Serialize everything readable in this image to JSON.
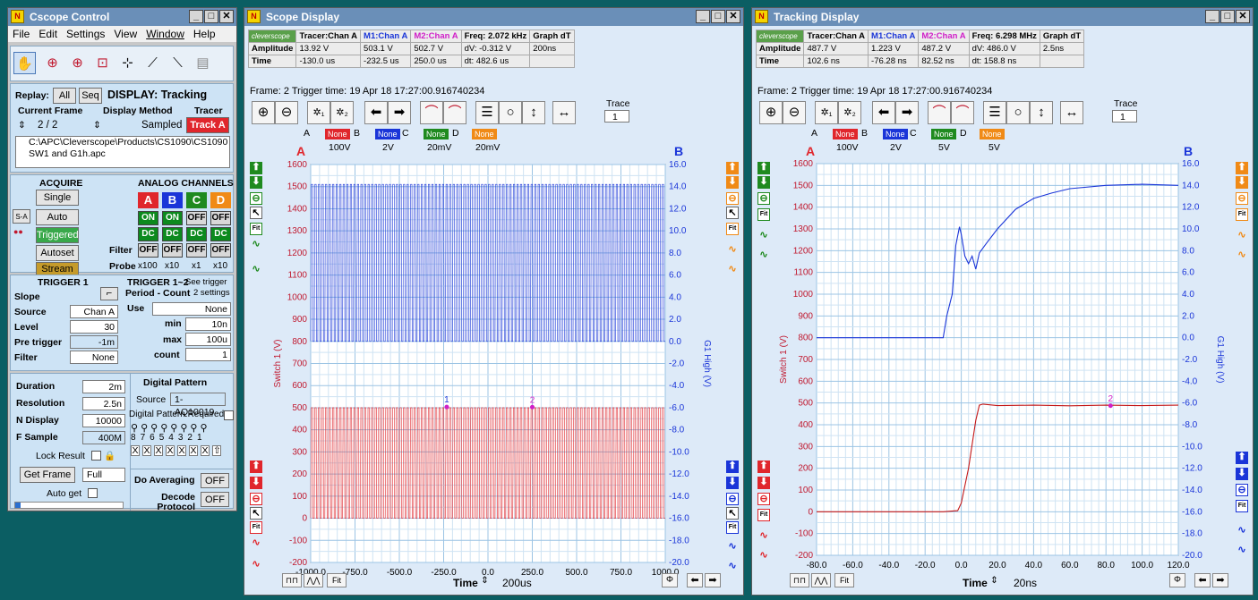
{
  "control": {
    "title": "Cscope Control",
    "menu": [
      "File",
      "Edit",
      "Settings",
      "View",
      "Window",
      "Help"
    ],
    "replay_label": "Replay:",
    "replay_all": "All",
    "replay_seq": "Seq",
    "display_label": "DISPLAY: Tracking",
    "current_frame_label": "Current Frame",
    "display_method_label": "Display Method",
    "tracer_label": "Tracer",
    "frame_value": "2 / 2",
    "display_method_value": "Sampled",
    "track_button": "Track A",
    "file_path": "C:\\APC\\Cleverscope\\Products\\CS1090\\CS1090 SW1 and G1h.apc",
    "acquire_label": "ACQUIRE",
    "analog_label": "ANALOG CHANNELS",
    "single": "Single",
    "auto": "Auto",
    "triggered": "Triggered",
    "autoset": "Autoset",
    "stream": "Stream",
    "sa_label": "S-A",
    "channels": [
      "A",
      "B",
      "C",
      "D"
    ],
    "channel_colors": [
      "#e0262c",
      "#1a35d8",
      "#1f8a1f",
      "#f08a16"
    ],
    "on_row": [
      "ON",
      "ON",
      "OFF",
      "OFF"
    ],
    "dc_row": [
      "DC",
      "DC",
      "DC",
      "DC"
    ],
    "filter_label": "Filter",
    "filter_row": [
      "OFF",
      "OFF",
      "OFF",
      "OFF"
    ],
    "probe_label": "Probe",
    "probe_row": [
      "x100",
      "x10",
      "x1",
      "x10"
    ],
    "trigger1_label": "TRIGGER 1",
    "trigger12_label": "TRIGGER 1~2",
    "see_trigger": "See trigger",
    "period_count": "Period - Count",
    "two_settings": "2 settings",
    "slope_label": "Slope",
    "source_label": "Source",
    "source_value": "Chan A",
    "level_label": "Level",
    "level_value": "30",
    "pretrigger_label": "Pre trigger",
    "pretrigger_value": "-1m",
    "filter2_label": "Filter",
    "filter2_value": "None",
    "use_label": "Use",
    "use_value": "None",
    "min_label": "min",
    "min_value": "10n",
    "max_label": "max",
    "max_value": "100u",
    "count_label": "count",
    "count_value": "1",
    "duration_label": "Duration",
    "duration_value": "2m",
    "resolution_label": "Resolution",
    "resolution_value": "2.5n",
    "ndisplay_label": "N Display",
    "ndisplay_value": "10000",
    "fsample_label": "F Sample",
    "fsample_value": "400M",
    "lock_label": "Lock Result",
    "get_frame": "Get Frame",
    "full": "Full",
    "auto_get": "Auto get",
    "digital_label": "Digital Pattern",
    "digital_source_label": "Source",
    "digital_source_value": "1-AQ10019",
    "digital_required": "Digital Pattern Required",
    "bit_numbers": [
      "8",
      "7",
      "6",
      "5",
      "4",
      "3",
      "2",
      "1"
    ],
    "bit_states": [
      "X",
      "X",
      "X",
      "X",
      "X",
      "X",
      "X",
      "⇧"
    ],
    "averaging_label": "Do Averaging",
    "averaging_value": "OFF",
    "decode_label": "Decode Protocol",
    "decode_value": "OFF"
  },
  "scope": {
    "title": "Scope Display",
    "info_header": [
      "Tracer:Chan A",
      "M1:Chan A",
      "M2:Chan A",
      "Freq: 2.072 kHz",
      "Graph dT"
    ],
    "info_row1": [
      "Amplitude",
      "13.92 V",
      "503.1 V",
      "502.7 V",
      "dV: -0.312 V",
      "200ns"
    ],
    "info_row2": [
      "Time",
      "-130.0 us",
      "-232.5 us",
      "250.0 us",
      "dt:  482.6 us",
      ""
    ],
    "logo": "cleverscope",
    "frame_info": "Frame: 2   Trigger time: 19 Apr 18 17:27:00.916740234",
    "trace_label": "Trace",
    "trace_value": "1",
    "legend_labels": [
      "A",
      "None",
      "B",
      "None",
      "C",
      "None",
      "D",
      "None"
    ],
    "volt_labels": [
      "100V",
      "2V",
      "20mV",
      "20mV"
    ],
    "axis_a": "A",
    "axis_b": "B",
    "time_label": "Time",
    "time_value": "200us",
    "marker1": "1",
    "marker2": "2",
    "fit": "Fit"
  },
  "tracking": {
    "title": "Tracking Display",
    "info_header": [
      "Tracer:Chan A",
      "M1:Chan A",
      "M2:Chan A",
      "Freq: 6.298 MHz",
      "Graph dT"
    ],
    "info_row1": [
      "Amplitude",
      "487.7 V",
      "1.223 V",
      "487.2 V",
      "dV: 486.0 V",
      "2.5ns"
    ],
    "info_row2": [
      "Time",
      "102.6 ns",
      "-76.28 ns",
      "82.52 ns",
      "dt:  158.8 ns",
      ""
    ],
    "logo": "cleverscope",
    "frame_info": "Frame: 2   Trigger time: 19 Apr 18 17:27:00.916740234",
    "trace_label": "Trace",
    "trace_value": "1",
    "legend_labels": [
      "A",
      "None",
      "B",
      "None",
      "C",
      "None",
      "D",
      "None"
    ],
    "volt_labels": [
      "100V",
      "2V",
      "5V",
      "5V"
    ],
    "axis_a": "A",
    "axis_b": "B",
    "time_label": "Time",
    "time_value": "20ns",
    "marker2": "2",
    "fit": "Fit"
  },
  "chart_data": [
    {
      "type": "line",
      "ylabel": "Switch 1 (V)",
      "y2label": "G1 High (V)",
      "ylim": [
        -200,
        1600
      ],
      "y2lim": [
        -20,
        16
      ],
      "xlim": [
        -1000,
        1000
      ],
      "x_ticks": [
        "-1000.0",
        "-750.0",
        "-500.0",
        "-250.0",
        "0.0",
        "250.0",
        "500.0",
        "750.0",
        "1000.0"
      ],
      "y_ticks": [
        "-200",
        "-100",
        "0",
        "100",
        "200",
        "300",
        "400",
        "500",
        "600",
        "700",
        "800",
        "900",
        "1000",
        "1100",
        "1200",
        "1300",
        "1400",
        "1500",
        "1600"
      ],
      "y2_ticks": [
        "-20.0",
        "-18.0",
        "-16.0",
        "-14.0",
        "-12.0",
        "-10.0",
        "-8.0",
        "-6.0",
        "-4.0",
        "-2.0",
        "0.0",
        "2.0",
        "4.0",
        "6.0",
        "8.0",
        "10.0",
        "12.0",
        "14.0",
        "16.0"
      ],
      "grid": true,
      "series": [
        {
          "name": "Switch 1",
          "color": "#e0262c",
          "axis": "left",
          "style": "square-wave",
          "low": 0,
          "high": 500,
          "period_us": 20
        },
        {
          "name": "G1 High",
          "color": "#1a35d8",
          "axis": "right",
          "style": "square-wave",
          "low": 0,
          "high": 14.2,
          "period_us": 20
        }
      ],
      "markers": [
        {
          "label": "1",
          "x": -232.5,
          "y": 503.1
        },
        {
          "label": "2",
          "x": 250,
          "y": 502.7
        }
      ]
    },
    {
      "type": "line",
      "ylabel": "Switch 1 (V)",
      "y2label": "G1 High (V)",
      "ylim": [
        -200,
        1600
      ],
      "y2lim": [
        -20,
        16
      ],
      "xlim": [
        -80,
        120
      ],
      "x_ticks": [
        "-80.0",
        "-60.0",
        "-40.0",
        "-20.0",
        "0.0",
        "20.0",
        "40.0",
        "60.0",
        "80.0",
        "100.0",
        "120.0"
      ],
      "y_ticks": [
        "-200",
        "-100",
        "0",
        "100",
        "200",
        "300",
        "400",
        "500",
        "600",
        "700",
        "800",
        "900",
        "1000",
        "1100",
        "1200",
        "1300",
        "1400",
        "1500",
        "1600"
      ],
      "y2_ticks": [
        "-20.0",
        "-18.0",
        "-16.0",
        "-14.0",
        "-12.0",
        "-10.0",
        "-8.0",
        "-6.0",
        "-4.0",
        "-2.0",
        "0.0",
        "2.0",
        "4.0",
        "6.0",
        "8.0",
        "10.0",
        "12.0",
        "14.0",
        "16.0"
      ],
      "grid": true,
      "series": [
        {
          "name": "Switch 1",
          "color": "#c41818",
          "axis": "left",
          "x": [
            -80,
            -10,
            -2,
            0,
            4,
            8,
            10,
            12,
            20,
            40,
            60,
            80,
            100,
            120
          ],
          "y": [
            0,
            0,
            5,
            40,
            200,
            420,
            490,
            495,
            488,
            490,
            487,
            490,
            488,
            490
          ]
        },
        {
          "name": "G1 High",
          "color": "#1a35d8",
          "axis": "right",
          "x": [
            -80,
            -76,
            -10,
            -8,
            -5,
            -3,
            -1,
            0,
            2,
            4,
            6,
            8,
            10,
            14,
            20,
            30,
            40,
            50,
            60,
            80,
            100,
            120
          ],
          "y": [
            0,
            0,
            0,
            2,
            4,
            8.5,
            10.2,
            9.5,
            7.5,
            6.8,
            7.5,
            6.3,
            7.8,
            8.7,
            10.0,
            11.8,
            12.8,
            13.3,
            13.7,
            14.0,
            14.1,
            14.0
          ]
        }
      ],
      "markers": [
        {
          "label": "2",
          "x": 82.52,
          "y": 487.2
        }
      ]
    }
  ]
}
